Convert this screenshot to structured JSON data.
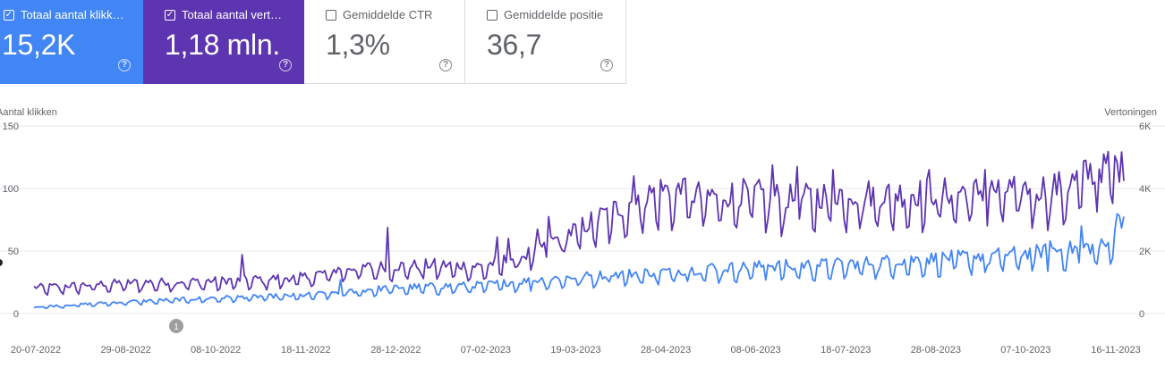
{
  "metrics": [
    {
      "label": "Totaal aantal klikk…",
      "value": "15,2K",
      "checked": true,
      "color": "#4285f4"
    },
    {
      "label": "Totaal aantal vert…",
      "value": "1,18 mln.",
      "checked": true,
      "color": "#5e35b1"
    },
    {
      "label": "Gemiddelde CTR",
      "value": "1,3%",
      "checked": false
    },
    {
      "label": "Gemiddelde positie",
      "value": "36,7",
      "checked": false
    }
  ],
  "help_glyph": "?",
  "check_glyph": "✓",
  "annotation_marker": "1",
  "chart_data": {
    "type": "line",
    "left_axis": {
      "title": "Aantal klikken",
      "min": 0,
      "max": 150,
      "ticks": [
        "0",
        "50",
        "100",
        "150"
      ],
      "tick_values": [
        0,
        50,
        100,
        150
      ]
    },
    "right_axis": {
      "title": "Vertoningen",
      "min": 0,
      "max": 6000,
      "ticks": [
        "0",
        "2K",
        "4K",
        "6K"
      ],
      "tick_values": [
        0,
        2000,
        4000,
        6000
      ]
    },
    "x_ticks": [
      "20-07-2022",
      "29-08-2022",
      "08-10-2022",
      "18-11-2022",
      "28-12-2022",
      "07-02-2023",
      "19-03-2023",
      "28-04-2023",
      "08-06-2023",
      "18-07-2023",
      "28-08-2023",
      "07-10-2023",
      "16-11-2023"
    ],
    "grid": true,
    "series": [
      {
        "axis": "left",
        "color": "#4285f4",
        "anchors": [
          [
            0,
            5
          ],
          [
            40,
            9
          ],
          [
            80,
            12
          ],
          [
            120,
            14
          ],
          [
            160,
            20
          ],
          [
            200,
            22
          ],
          [
            240,
            28
          ],
          [
            280,
            32
          ],
          [
            320,
            36
          ],
          [
            360,
            38
          ],
          [
            400,
            42
          ],
          [
            440,
            46
          ],
          [
            480,
            52
          ],
          [
            485,
            75
          ],
          [
            487,
            72
          ]
        ],
        "peaks": [
          [
            137,
            27
          ],
          [
            223,
            26
          ],
          [
            258,
            30
          ],
          [
            293,
            33
          ],
          [
            303,
            40
          ],
          [
            328,
            39
          ],
          [
            339,
            35
          ],
          [
            378,
            37
          ],
          [
            427,
            40
          ],
          [
            437,
            50
          ],
          [
            454,
            58
          ],
          [
            468,
            70
          ]
        ]
      },
      {
        "axis": "right",
        "color": "#5e35b1",
        "anchors": [
          [
            0,
            800
          ],
          [
            40,
            950
          ],
          [
            80,
            1000
          ],
          [
            120,
            1120
          ],
          [
            140,
            1400
          ],
          [
            180,
            1500
          ],
          [
            200,
            1450
          ],
          [
            220,
            1800
          ],
          [
            240,
            2500
          ],
          [
            260,
            3200
          ],
          [
            280,
            3800
          ],
          [
            300,
            3600
          ],
          [
            320,
            3700
          ],
          [
            340,
            3500
          ],
          [
            360,
            3700
          ],
          [
            380,
            3650
          ],
          [
            400,
            3700
          ],
          [
            420,
            3750
          ],
          [
            440,
            3800
          ],
          [
            460,
            3900
          ],
          [
            480,
            4600
          ],
          [
            485,
            4500
          ],
          [
            487,
            4400
          ]
        ],
        "peaks": [
          [
            93,
            1880
          ],
          [
            158,
            2750
          ],
          [
            207,
            2450
          ],
          [
            212,
            2400
          ],
          [
            225,
            2700
          ],
          [
            230,
            3100
          ],
          [
            268,
            4400
          ],
          [
            290,
            4300
          ],
          [
            330,
            4750
          ],
          [
            341,
            4700
          ],
          [
            357,
            4600
          ],
          [
            400,
            4600
          ],
          [
            425,
            4600
          ],
          [
            470,
            4900
          ],
          [
            474,
            4200
          ],
          [
            478,
            5100
          ]
        ]
      }
    ]
  }
}
